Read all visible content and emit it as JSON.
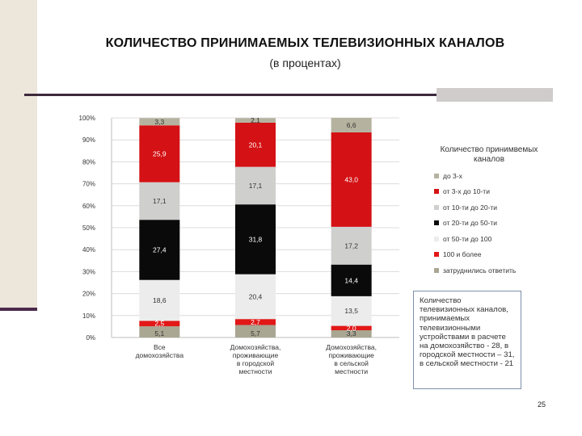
{
  "title": "КОЛИЧЕСТВО ПРИНИМАЕМЫХ ТЕЛЕВИЗИОННЫХ КАНАЛОВ",
  "subtitle": "(в процентах)",
  "page_number": "25",
  "note": "Количество телевизионных каналов, принимаемых телевизионными устройствами в расчете на домохозяйство - 28, в городской местности – 31, в сельской местности - 21",
  "colors": {
    "до 3-х": "#b5b39f",
    "от 3-х до 10-ти": "#d41114",
    "от 10-ти до 20-ти": "#cfcfcd",
    "от 20-ти до 50-ти": "#0a0a0a",
    "от 50-ти до 100": "#ececec",
    "100 и более": "#e21717",
    "затруднились ответить": "#a9a692"
  },
  "chart_data": {
    "type": "bar",
    "stacked": true,
    "percent": true,
    "legend_title": "Количество принимвемых каналов",
    "legend_position": "right",
    "categories": [
      "Все домохозяйства",
      "Домохозяйства, проживающие в городской местности",
      "Домохозяйства, проживающие в сельской местности"
    ],
    "category_lines": [
      [
        "Все",
        "домохозяйства"
      ],
      [
        "Домохозяйства,",
        "проживающие",
        "в городской",
        "местности"
      ],
      [
        "Домохозяйства,",
        "проживающие",
        "в сельской",
        "местности"
      ]
    ],
    "series": [
      {
        "name": "затруднились ответить",
        "values": [
          5.1,
          5.7,
          3.3
        ]
      },
      {
        "name": "100 и более",
        "values": [
          2.5,
          2.7,
          2.0
        ]
      },
      {
        "name": "от 50-ти до 100",
        "values": [
          18.6,
          20.4,
          13.5
        ]
      },
      {
        "name": "от 20-ти до 50-ти",
        "values": [
          27.4,
          31.8,
          14.4
        ]
      },
      {
        "name": "от 10-ти до 20-ти",
        "values": [
          17.1,
          17.1,
          17.2
        ]
      },
      {
        "name": "от 3-х до 10-ти",
        "values": [
          25.9,
          20.1,
          43.0
        ]
      },
      {
        "name": "до 3-х",
        "values": [
          3.3,
          2.1,
          6.6
        ]
      }
    ],
    "value_labels": [
      [
        "5,1",
        "2,5",
        "18,6",
        "27,4",
        "17,1",
        "25,9",
        "3,3"
      ],
      [
        "5,7",
        "2,7",
        "20,4",
        "31,8",
        "17,1",
        "20,1",
        "2,1"
      ],
      [
        "3,3",
        "2,0",
        "13,5",
        "14,4",
        "17,2",
        "43,0",
        "6,6"
      ]
    ],
    "y_ticks": [
      "0%",
      "10%",
      "20%",
      "30%",
      "40%",
      "50%",
      "60%",
      "70%",
      "80%",
      "90%",
      "100%"
    ],
    "ylim": [
      0,
      100
    ],
    "grid": true
  }
}
